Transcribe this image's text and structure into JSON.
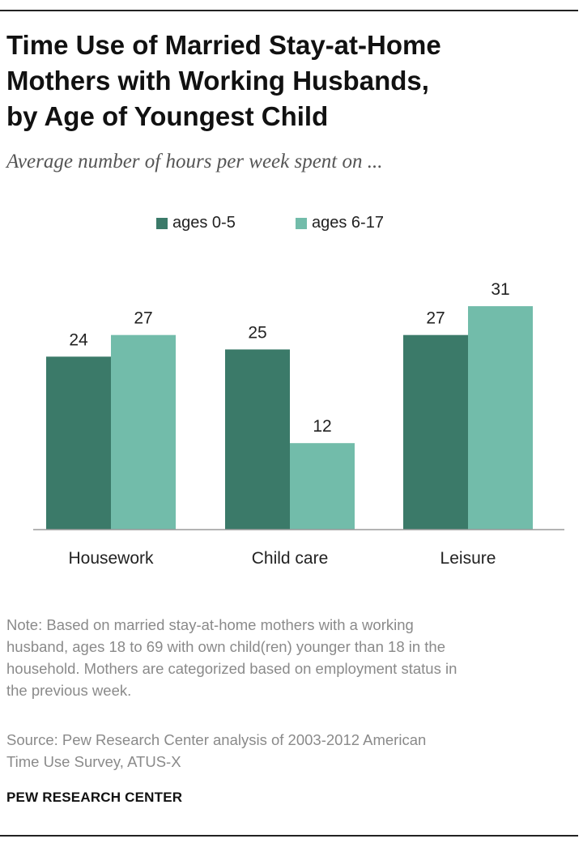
{
  "title_lines": [
    "Time Use of Married Stay-at-Home",
    "Mothers with Working Husbands,",
    "by Age of Youngest Child"
  ],
  "subtitle": "Average number of hours per week spent on ...",
  "legend": [
    {
      "label": "ages 0-5",
      "color": "#3b7a69"
    },
    {
      "label": "ages 6-17",
      "color": "#72bcaa"
    }
  ],
  "note_lines": [
    "Note: Based on married stay-at-home mothers with a working",
    "husband, ages 18 to 69 with own child(ren) younger than 18 in the",
    "household. Mothers are categorized based on employment status in",
    "the previous week."
  ],
  "source_lines": [
    "Source: Pew Research Center analysis of 2003-2012 American",
    "Time Use Survey, ATUS-X"
  ],
  "brand": "PEW RESEARCH CENTER",
  "chart_data": {
    "type": "bar",
    "categories": [
      "Housework",
      "Child care",
      "Leisure"
    ],
    "series": [
      {
        "name": "ages 0-5",
        "values": [
          24,
          25,
          27
        ],
        "color": "#3b7a69"
      },
      {
        "name": "ages 6-17",
        "values": [
          27,
          12,
          31
        ],
        "color": "#72bcaa"
      }
    ],
    "ylim": [
      0,
      31
    ],
    "grid": false,
    "legend_position": "top-center"
  }
}
